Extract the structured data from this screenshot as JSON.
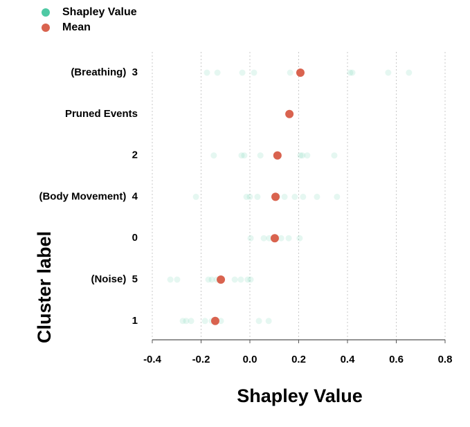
{
  "chart_data": {
    "type": "strip",
    "xlabel": "Shapley Value",
    "ylabel": "Cluster label",
    "categories": [
      "(Breathing)  3",
      "Pruned Events",
      "2",
      "(Body Movement)  4",
      "0",
      "(Noise)  5",
      "1"
    ],
    "series": [
      {
        "name": "Shapley Value",
        "color": "#4fc9a4",
        "values": [
          [
            -0.176,
            -0.133,
            -0.031,
            0.017,
            0.165,
            0.411,
            0.42,
            0.567,
            0.652
          ],
          [],
          [
            -0.148,
            -0.034,
            -0.023,
            0.043,
            0.113,
            0.207,
            0.215,
            0.235,
            0.346
          ],
          [
            -0.221,
            -0.014,
            0,
            0.031,
            0.113,
            0.142,
            0.184,
            0.218,
            0.275,
            0.357
          ],
          [
            0.003,
            0.057,
            0.079,
            0.099,
            0.128,
            0.159,
            0.204
          ],
          [
            -0.326,
            -0.298,
            -0.17,
            -0.156,
            -0.136,
            -0.062,
            -0.037,
            -0.009,
            0.003
          ],
          [
            -0.275,
            -0.261,
            -0.241,
            -0.184,
            -0.156,
            -0.119,
            0.037,
            0.077
          ]
        ]
      },
      {
        "name": "Mean",
        "color": "#d9634f",
        "values": [
          0.207,
          0.162,
          0.113,
          0.105,
          0.102,
          -0.119,
          -0.142
        ]
      }
    ],
    "xlim": [
      -0.4,
      0.8
    ],
    "xticks": [
      -0.4,
      -0.2,
      {
        "value": 0,
        "label": "0.0"
      },
      0.2,
      0.4,
      0.6,
      0.8
    ],
    "grid": true
  }
}
